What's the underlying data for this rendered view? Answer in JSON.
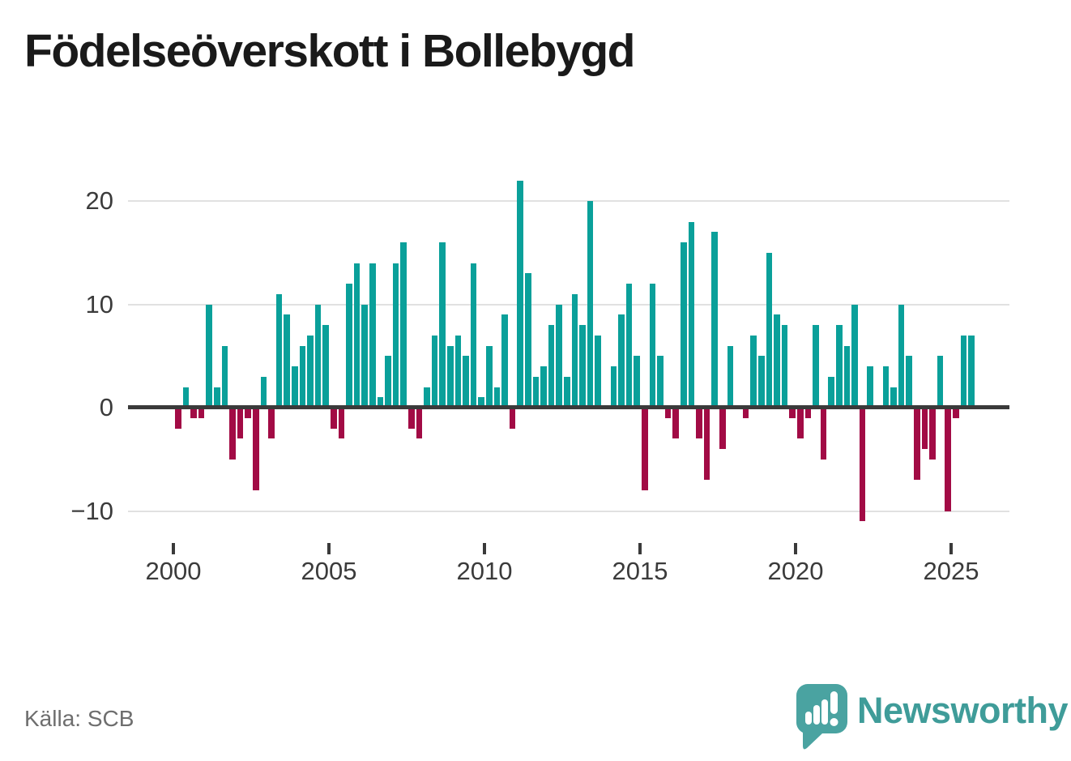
{
  "title": "Födelseöverskott i Bollebygd",
  "source": "Källa: SCB",
  "branding": {
    "name": "Newsworthy"
  },
  "colors": {
    "positive_bar": "#0aa09a",
    "negative_bar": "#a20b45",
    "zero_axis": "#3a3a3a",
    "gridline": "#e1e1e1",
    "axis_text": "#3b3b3b",
    "title_text": "#1a1a1a",
    "source_text": "#6e6e6e",
    "brand_icon": "#4aa3a1",
    "brand_text": "#3f9c99"
  },
  "y_axis": {
    "ticks": [
      {
        "value": 20,
        "label": "20"
      },
      {
        "value": 10,
        "label": "10"
      },
      {
        "value": 0,
        "label": "0"
      },
      {
        "value": -10,
        "label": "−10"
      }
    ]
  },
  "x_axis": {
    "ticks": [
      {
        "year": 2000,
        "label": "2000"
      },
      {
        "year": 2005,
        "label": "2005"
      },
      {
        "year": 2010,
        "label": "2010"
      },
      {
        "year": 2015,
        "label": "2015"
      },
      {
        "year": 2020,
        "label": "2020"
      },
      {
        "year": 2025,
        "label": "2025"
      }
    ]
  },
  "chart_data": {
    "type": "bar",
    "title": "Födelseöverskott i Bollebygd",
    "frequency": "quarterly",
    "x_start": "2000 Q1",
    "x_end": "2025 Q3",
    "ylim": [
      -12,
      23
    ],
    "grid": "horizontal",
    "values": [
      -2,
      2,
      -1,
      -1,
      10,
      2,
      6,
      -5,
      -3,
      -1,
      -8,
      3,
      -3,
      11,
      9,
      4,
      6,
      7,
      10,
      8,
      -2,
      -3,
      12,
      14,
      10,
      14,
      1,
      5,
      14,
      16,
      -2,
      -3,
      2,
      7,
      16,
      6,
      7,
      5,
      14,
      1,
      6,
      2,
      9,
      -2,
      22,
      13,
      3,
      4,
      8,
      10,
      3,
      11,
      8,
      20,
      7,
      0,
      4,
      9,
      12,
      5,
      -8,
      12,
      5,
      -1,
      -3,
      16,
      18,
      -3,
      -7,
      17,
      -4,
      6,
      0,
      -1,
      7,
      5,
      15,
      9,
      8,
      -1,
      -3,
      -1,
      8,
      -5,
      3,
      8,
      6,
      10,
      -11,
      4,
      0,
      4,
      2,
      10,
      5,
      -7,
      -4,
      -5,
      5,
      -10,
      -1,
      7,
      7
    ]
  }
}
